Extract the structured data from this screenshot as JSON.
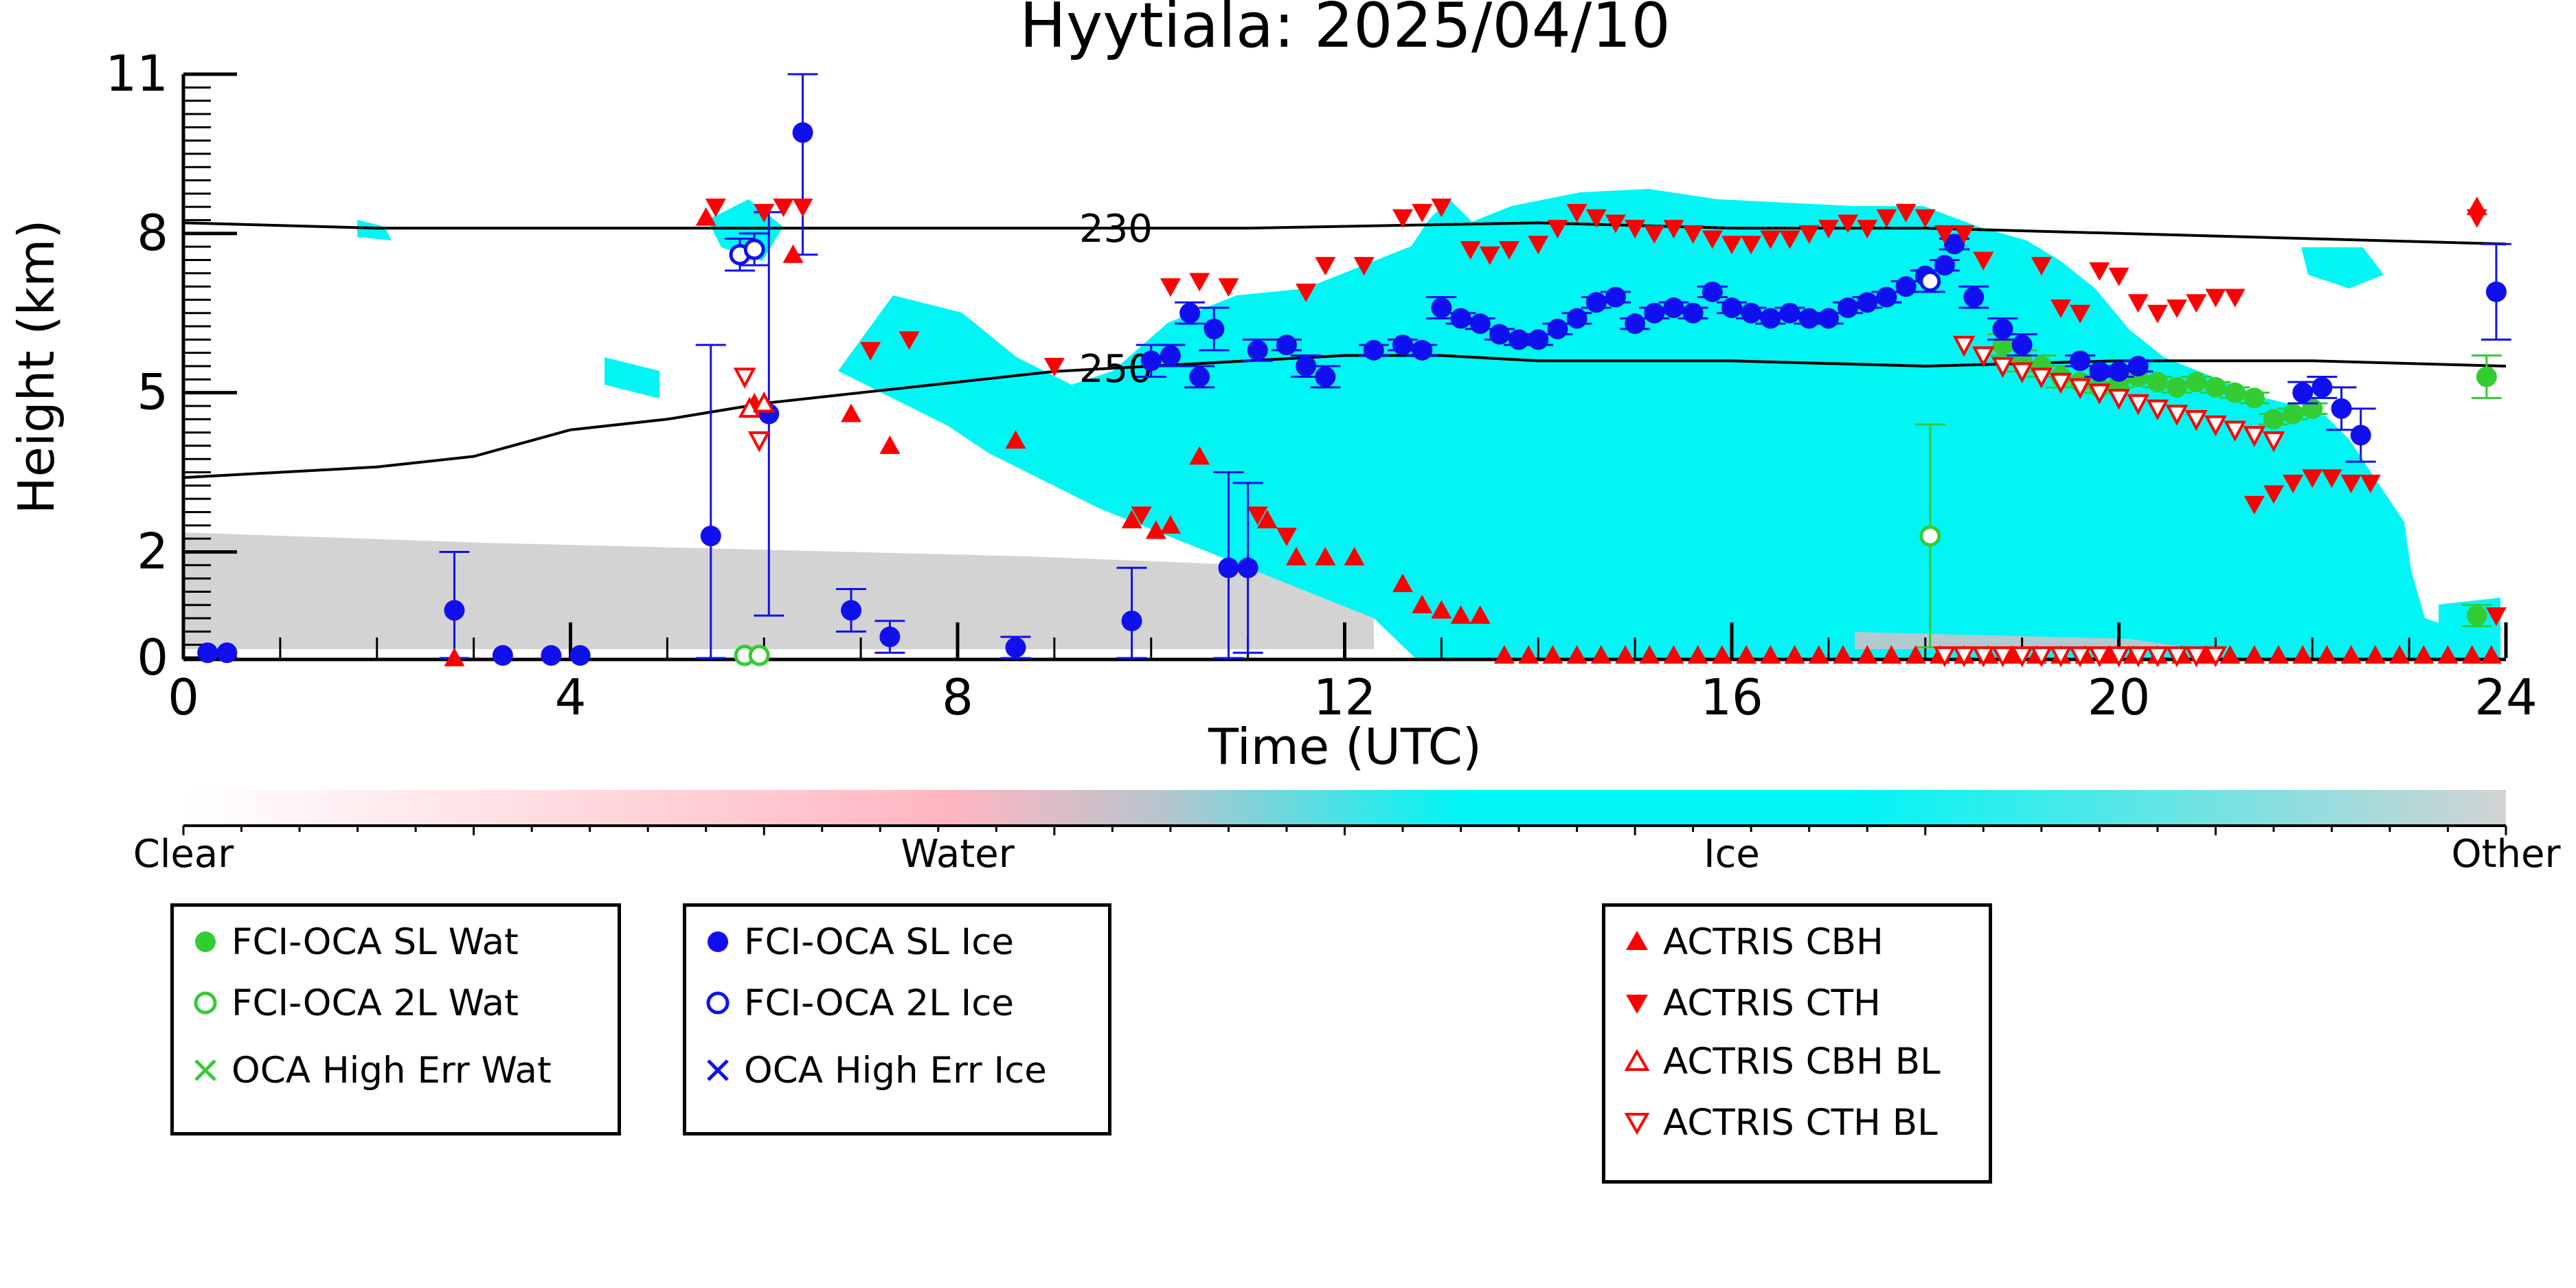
{
  "chart_data": {
    "type": "scatter",
    "title": "Hyytiala: 2025/04/10",
    "xlabel": "Time (UTC)",
    "ylabel": "Height (km)",
    "xlim": [
      0,
      24
    ],
    "ylim": [
      0,
      11
    ],
    "x_ticks": [
      0,
      4,
      8,
      12,
      16,
      20,
      24
    ],
    "y_ticks": [
      0,
      2,
      5,
      8,
      11
    ],
    "y_tick_labels": [
      "0",
      "2",
      "5",
      "8",
      "11"
    ],
    "background": "cloud-classification image (Clear / Water / Ice / Other)",
    "colorbar": {
      "labels": [
        "Clear",
        "Water",
        "Ice",
        "Other"
      ],
      "colors": [
        "#ffffff",
        "#ffb6c1",
        "#00f5f5",
        "#d3d3d3"
      ]
    },
    "contours": [
      {
        "label": "230",
        "x": [
          0,
          2,
          4,
          6,
          8,
          11,
          14,
          16,
          18,
          20,
          22,
          24
        ],
        "y": [
          8.2,
          8.1,
          8.1,
          8.1,
          8.1,
          8.1,
          8.2,
          8.1,
          8.1,
          8.0,
          7.9,
          7.8
        ]
      },
      {
        "label": "250",
        "x": [
          0,
          1,
          2,
          3,
          4,
          5,
          6,
          7,
          8,
          9,
          10,
          11,
          12,
          13,
          14,
          16,
          18,
          20,
          22,
          24
        ],
        "y": [
          3.4,
          3.5,
          3.6,
          3.8,
          4.3,
          4.5,
          4.8,
          5.0,
          5.2,
          5.4,
          5.5,
          5.6,
          5.7,
          5.7,
          5.6,
          5.6,
          5.5,
          5.6,
          5.6,
          5.5
        ]
      }
    ],
    "series": [
      {
        "name": "FCI-OCA SL Wat",
        "marker": "filled-circle",
        "color": "#33cc33",
        "x": [
          18.8,
          19.0,
          19.2,
          19.4,
          19.6,
          19.8,
          20.0,
          20.2,
          20.4,
          20.6,
          20.8,
          21.0,
          21.2,
          21.4,
          21.6,
          21.8,
          22.0,
          23.7,
          23.8
        ],
        "y": [
          5.9,
          5.6,
          5.5,
          5.3,
          5.2,
          5.1,
          5.2,
          5.3,
          5.2,
          5.1,
          5.2,
          5.1,
          5.0,
          4.9,
          4.5,
          4.6,
          4.7,
          0.8,
          5.3
        ],
        "err": [
          0.2,
          0.2,
          0.2,
          0.2,
          0.1,
          0.1,
          0.1,
          0.1,
          0.1,
          0.1,
          0.1,
          0.1,
          0.1,
          0.1,
          0.1,
          0.1,
          0.1,
          0.2,
          0.4
        ]
      },
      {
        "name": "FCI-OCA 2L Wat",
        "marker": "open-circle",
        "color": "#33cc33",
        "x": [
          5.8,
          5.95,
          18.05
        ],
        "y": [
          0.05,
          0.05,
          2.3
        ],
        "err": [
          0,
          0,
          2.1
        ]
      },
      {
        "name": "OCA High Err Wat",
        "marker": "x",
        "color": "#33cc33",
        "x": [],
        "y": []
      },
      {
        "name": "FCI-OCA SL Ice",
        "marker": "filled-circle",
        "color": "#1010ee",
        "x": [
          0.25,
          0.45,
          2.8,
          3.3,
          3.8,
          4.1,
          5.45,
          6.05,
          6.4,
          6.9,
          7.3,
          8.6,
          9.8,
          10.0,
          10.2,
          10.4,
          10.5,
          10.8,
          10.65,
          11.0,
          11.1,
          11.4,
          11.6,
          11.8,
          12.3,
          12.6,
          12.8,
          13.0,
          13.2,
          13.4,
          13.6,
          13.8,
          14.0,
          14.2,
          14.4,
          14.6,
          14.8,
          15.0,
          15.2,
          15.4,
          15.6,
          15.8,
          16.0,
          16.2,
          16.4,
          16.6,
          16.8,
          17.0,
          17.2,
          17.4,
          17.6,
          17.8,
          18.0,
          18.2,
          18.3,
          18.5,
          18.8,
          19.0,
          19.6,
          19.8,
          20.0,
          20.2,
          21.9,
          22.1,
          22.3,
          22.5,
          23.9
        ],
        "y": [
          0.1,
          0.1,
          0.9,
          0.05,
          0.05,
          0.05,
          2.3,
          4.6,
          9.9,
          0.9,
          0.4,
          0.2,
          0.7,
          5.6,
          5.7,
          6.5,
          5.3,
          1.7,
          6.2,
          1.7,
          5.8,
          5.9,
          5.5,
          5.3,
          5.8,
          5.9,
          5.8,
          6.6,
          6.4,
          6.3,
          6.1,
          6.0,
          6.0,
          6.2,
          6.4,
          6.7,
          6.8,
          6.3,
          6.5,
          6.6,
          6.5,
          6.9,
          6.6,
          6.5,
          6.4,
          6.5,
          6.4,
          6.4,
          6.6,
          6.7,
          6.8,
          7.0,
          7.2,
          7.4,
          7.8,
          6.8,
          6.2,
          5.9,
          5.6,
          5.4,
          5.4,
          5.5,
          5.0,
          5.1,
          4.7,
          4.2,
          6.9
        ],
        "err": [
          0,
          0,
          1.1,
          0,
          0,
          0,
          3.6,
          3.8,
          2.3,
          0.4,
          0.3,
          0.2,
          1.0,
          0.3,
          0.2,
          0.2,
          0.2,
          1.8,
          0.4,
          1.6,
          0.2,
          0.1,
          0.2,
          0.2,
          0.1,
          0.1,
          0.1,
          0.2,
          0.1,
          0.1,
          0.1,
          0.1,
          0.1,
          0.1,
          0.1,
          0.1,
          0.1,
          0.1,
          0.1,
          0.1,
          0.1,
          0.1,
          0.1,
          0.1,
          0.1,
          0.1,
          0.1,
          0.1,
          0.1,
          0.1,
          0.1,
          0.1,
          0.1,
          0.1,
          0.1,
          0.2,
          0.2,
          0.2,
          0.1,
          0.1,
          0.1,
          0.1,
          0.2,
          0.2,
          0.4,
          0.5,
          0.9
        ]
      },
      {
        "name": "FCI-OCA 2L Ice",
        "marker": "open-circle",
        "color": "#1010ee",
        "x": [
          5.75,
          5.9,
          18.05
        ],
        "y": [
          7.6,
          7.7,
          7.1
        ],
        "err": [
          0.3,
          0.3,
          0.2
        ]
      },
      {
        "name": "OCA High Err Ice",
        "marker": "x",
        "color": "#1010ee",
        "x": [],
        "y": []
      },
      {
        "name": "ACTRIS CBH",
        "marker": "triangle-up",
        "color": "#ff0000",
        "x": [
          2.8,
          5.4,
          5.9,
          6.3,
          6.9,
          7.3,
          8.6,
          9.8,
          10.05,
          10.2,
          10.5,
          11.2,
          11.5,
          11.8,
          12.1,
          12.6,
          12.8,
          13.0,
          13.2,
          13.4,
          13.65,
          13.9,
          14.15,
          14.4,
          14.65,
          14.9,
          15.15,
          15.4,
          15.65,
          15.9,
          16.15,
          16.4,
          16.65,
          16.9,
          17.15,
          17.4,
          17.65,
          17.9,
          18.15,
          18.4,
          18.65,
          18.9,
          19.15,
          19.4,
          19.65,
          19.9,
          20.15,
          20.4,
          20.65,
          20.9,
          21.15,
          21.4,
          21.65,
          21.9,
          22.15,
          22.4,
          22.65,
          22.9,
          23.15,
          23.4,
          23.65,
          23.85,
          23.7
        ],
        "y": [
          0.0,
          8.3,
          4.8,
          7.6,
          4.6,
          4.0,
          4.1,
          2.6,
          2.4,
          2.5,
          3.8,
          2.6,
          1.9,
          1.9,
          1.9,
          1.4,
          1.0,
          0.9,
          0.8,
          0.8,
          0.05,
          0.05,
          0.05,
          0.05,
          0.05,
          0.05,
          0.05,
          0.05,
          0.05,
          0.05,
          0.05,
          0.05,
          0.05,
          0.05,
          0.05,
          0.05,
          0.05,
          0.05,
          0.05,
          0.05,
          0.05,
          0.05,
          0.05,
          0.05,
          0.05,
          0.05,
          0.05,
          0.05,
          0.05,
          0.05,
          0.05,
          0.05,
          0.05,
          0.05,
          0.05,
          0.05,
          0.05,
          0.05,
          0.05,
          0.05,
          0.05,
          0.05,
          8.5
        ]
      },
      {
        "name": "ACTRIS CTH",
        "marker": "triangle-down",
        "color": "#ff0000",
        "x": [
          5.5,
          6.0,
          6.2,
          6.4,
          7.1,
          7.5,
          9.0,
          9.9,
          10.2,
          10.5,
          10.8,
          11.1,
          11.4,
          11.6,
          11.8,
          12.2,
          12.6,
          12.8,
          13.0,
          13.3,
          13.5,
          13.7,
          14.0,
          14.2,
          14.4,
          14.6,
          14.8,
          15.0,
          15.2,
          15.4,
          15.6,
          15.8,
          16.0,
          16.2,
          16.4,
          16.6,
          16.8,
          17.0,
          17.2,
          17.4,
          17.6,
          17.8,
          18.0,
          18.2,
          18.4,
          18.6,
          19.2,
          19.4,
          19.6,
          19.8,
          20.0,
          20.2,
          20.4,
          20.6,
          20.8,
          21.0,
          21.2,
          21.4,
          21.6,
          21.8,
          22.0,
          22.2,
          22.4,
          22.6,
          23.7,
          23.9
        ],
        "y": [
          8.5,
          8.4,
          8.5,
          8.5,
          5.8,
          6.0,
          5.5,
          2.7,
          7.0,
          7.1,
          7.0,
          2.7,
          2.3,
          6.9,
          7.4,
          7.4,
          8.3,
          8.4,
          8.5,
          7.7,
          7.6,
          7.7,
          7.8,
          8.1,
          8.4,
          8.3,
          8.2,
          8.1,
          8.0,
          8.1,
          8.0,
          7.9,
          7.8,
          7.8,
          7.9,
          7.9,
          8.0,
          8.1,
          8.2,
          8.1,
          8.3,
          8.4,
          8.3,
          8.0,
          8.0,
          7.5,
          7.4,
          6.6,
          6.5,
          7.3,
          7.2,
          6.7,
          6.5,
          6.6,
          6.7,
          6.8,
          6.8,
          2.9,
          3.1,
          3.3,
          3.4,
          3.4,
          3.3,
          3.3,
          8.3,
          0.8
        ]
      },
      {
        "name": "ACTRIS CBH BL",
        "marker": "open-triangle-up",
        "color": "#ff0000",
        "x": [
          5.85,
          6.0
        ],
        "y": [
          4.7,
          4.8
        ]
      },
      {
        "name": "ACTRIS CTH BL",
        "marker": "open-triangle-down",
        "color": "#ff0000",
        "x": [
          5.8,
          5.95,
          18.4,
          18.6,
          18.8,
          19.0,
          19.2,
          19.4,
          19.6,
          19.8,
          20.0,
          20.2,
          20.4,
          20.6,
          20.8,
          21.0,
          21.2,
          21.4,
          21.6,
          18.2,
          18.4,
          18.6,
          18.8,
          19.0,
          19.2,
          19.4,
          19.6,
          19.8,
          20.0,
          20.2,
          20.4,
          20.6,
          20.8,
          21.0
        ],
        "y": [
          5.3,
          4.1,
          5.9,
          5.7,
          5.5,
          5.4,
          5.3,
          5.2,
          5.1,
          5.0,
          4.9,
          4.8,
          4.7,
          4.6,
          4.5,
          4.4,
          4.3,
          4.2,
          4.1,
          0.05,
          0.05,
          0.05,
          0.05,
          0.05,
          0.05,
          0.05,
          0.05,
          0.05,
          0.05,
          0.05,
          0.05,
          0.05,
          0.05,
          0.05
        ]
      }
    ]
  },
  "legends": [
    {
      "items": [
        {
          "label": "FCI-OCA SL Wat",
          "marker": "filled-circle",
          "color": "#33cc33"
        },
        {
          "label": "FCI-OCA 2L Wat",
          "marker": "open-circle",
          "color": "#33cc33"
        },
        {
          "label": "OCA High Err Wat",
          "marker": "x",
          "color": "#33cc33"
        }
      ]
    },
    {
      "items": [
        {
          "label": "FCI-OCA SL Ice",
          "marker": "filled-circle",
          "color": "#1010ee"
        },
        {
          "label": "FCI-OCA 2L Ice",
          "marker": "open-circle",
          "color": "#1010ee"
        },
        {
          "label": "OCA High Err Ice",
          "marker": "x",
          "color": "#1010ee"
        }
      ]
    },
    {
      "items": [
        {
          "label": "ACTRIS CBH",
          "marker": "triangle-up",
          "color": "#ff0000"
        },
        {
          "label": "ACTRIS CTH",
          "marker": "triangle-down",
          "color": "#ff0000"
        },
        {
          "label": "ACTRIS CBH BL",
          "marker": "open-triangle-up",
          "color": "#ff0000"
        },
        {
          "label": "ACTRIS CTH BL",
          "marker": "open-triangle-down",
          "color": "#ff0000"
        }
      ]
    }
  ]
}
